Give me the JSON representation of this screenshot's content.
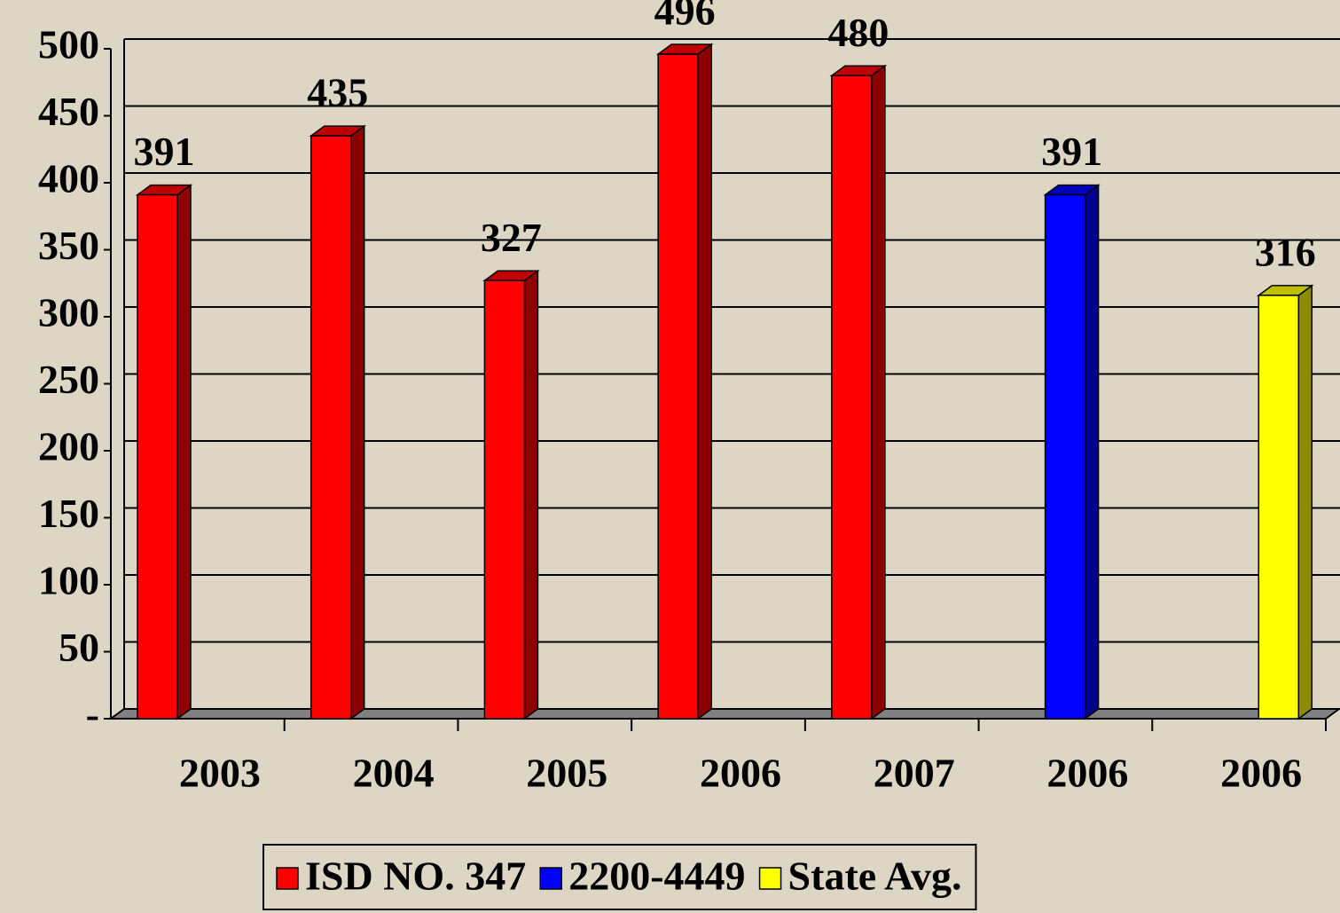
{
  "chart_data": {
    "type": "bar",
    "categories": [
      "2003",
      "2004",
      "2005",
      "2006",
      "2007",
      "2006",
      "2006"
    ],
    "series": [
      {
        "name": "ISD NO. 347",
        "color": "#ff0000",
        "values": [
          391,
          435,
          327,
          496,
          480,
          null,
          null
        ]
      },
      {
        "name": "2200-4449",
        "color": "#0000ff",
        "values": [
          null,
          null,
          null,
          null,
          null,
          391,
          null
        ]
      },
      {
        "name": "State Avg.",
        "color": "#ffff00",
        "values": [
          null,
          null,
          null,
          null,
          null,
          null,
          316
        ]
      }
    ],
    "ylim": [
      0,
      500
    ],
    "yticks": [
      {
        "value": 0,
        "label": "-"
      },
      50,
      100,
      150,
      200,
      250,
      300,
      350,
      400,
      450,
      500
    ],
    "grid": true,
    "legend": "bottom"
  }
}
